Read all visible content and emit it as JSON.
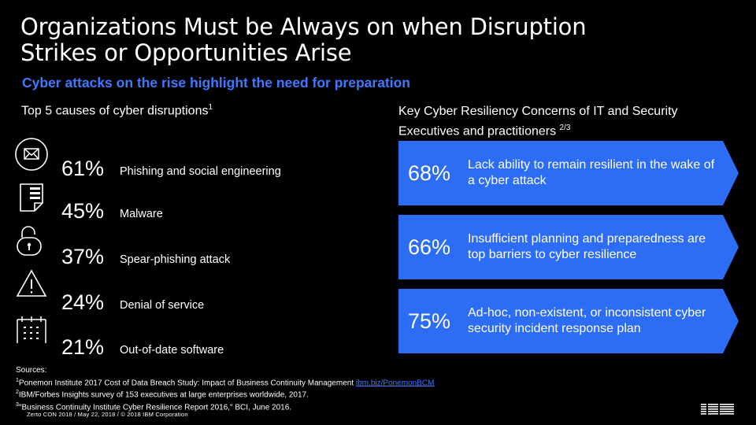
{
  "title": "Organizations Must be Always on when Disruption Strikes or Opportunities Arise",
  "subtitle": "Cyber attacks on the rise highlight the need for preparation",
  "left_heading": {
    "text": "Top 5 causes of cyber disruptions",
    "sup": "1"
  },
  "causes": [
    {
      "pct": "61%",
      "label": "Phishing and social engineering",
      "icon": "envelope-icon"
    },
    {
      "pct": "45%",
      "label": "Malware",
      "icon": "document-icon"
    },
    {
      "pct": "37%",
      "label": "Spear-phishing attack",
      "icon": "unlocked-padlock-icon"
    },
    {
      "pct": "24%",
      "label": "Denial of service",
      "icon": "warning-triangle-icon"
    },
    {
      "pct": "21%",
      "label": "Out-of-date software",
      "icon": "calendar-icon"
    }
  ],
  "right_heading": {
    "text": "Key Cyber Resiliency Concerns of IT and Security Executives and practitioners ",
    "sup": "2/3"
  },
  "concerns": [
    {
      "pct": "68%",
      "text": "Lack ability to remain resilient in the wake of a cyber attack"
    },
    {
      "pct": "66%",
      "text": "Insufficient planning and preparedness are top barriers to cyber resilience"
    },
    {
      "pct": "75%",
      "text": "Ad-hoc, non-existent, or inconsistent cyber security incident response plan"
    }
  ],
  "sources": {
    "label": "Sources:",
    "line1_sup": "1",
    "line1": "Ponemon Institute 2017 Cost of Data Breach Study: Impact of Business Continuity Management ",
    "line1_link": "ibm.biz/PonemonBCM",
    "line2_sup": "2",
    "line2": "IBM/Forbes Insights survey of 153 executives at large enterprises worldwide, 2017.",
    "line3_sup": "3",
    "line3": "\"Business Continuity Institute Cyber Resilience Report 2016,\" BCI, June 2016."
  },
  "footer": "Zerto CON 2018 /  May 22,  2018 / © 2018 IBM Corporation",
  "colors": {
    "accent": "#4178ff",
    "card": "#2d6cf5",
    "background": "#000000"
  }
}
